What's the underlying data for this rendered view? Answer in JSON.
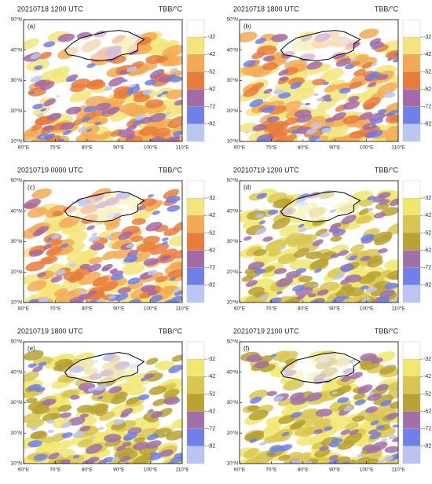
{
  "panels": [
    {
      "title": "20210718 1200 UTC",
      "unit": "TBB/°C",
      "label": "(a)",
      "palette": [
        "#ffffff",
        "#f3e57c",
        "#f3aa55",
        "#e87c3c",
        "#a46aa6",
        "#6f80e6",
        "#bcc6f2"
      ]
    },
    {
      "title": "20210718 1800 UTC",
      "unit": "TBB/°C",
      "label": "(b)",
      "palette": [
        "#ffffff",
        "#f3e57c",
        "#f3aa55",
        "#e87c3c",
        "#a46aa6",
        "#6f80e6",
        "#bcc6f2"
      ]
    },
    {
      "title": "20210719 0000 UTC",
      "unit": "TBB/°C",
      "label": "(c)",
      "palette": [
        "#ffffff",
        "#f3e57c",
        "#f3aa55",
        "#e87c3c",
        "#a46aa6",
        "#6f80e6",
        "#bcc6f2"
      ]
    },
    {
      "title": "20210719 1200 UTC",
      "unit": "TBB/°C",
      "label": "(d)",
      "palette": [
        "#ffffff",
        "#f0e86e",
        "#d9c552",
        "#b9a134",
        "#a070a8",
        "#7080e8",
        "#bcc4f2"
      ]
    },
    {
      "title": "20210719 1800 UTC",
      "unit": "TBB/°C",
      "label": "(e)",
      "palette": [
        "#ffffff",
        "#f0e86e",
        "#d9c552",
        "#b9a134",
        "#a070a8",
        "#7080e8",
        "#bcc4f2"
      ]
    },
    {
      "title": "20210719 2100 UTC",
      "unit": "TBB/°C",
      "label": "(f)",
      "palette": [
        "#ffffff",
        "#f0e86e",
        "#d9c552",
        "#b9a134",
        "#a070a8",
        "#7080e8",
        "#bcc4f2"
      ]
    }
  ],
  "lon_labels": [
    "60°E",
    "70°E",
    "80°E",
    "90°E",
    "100°E",
    "110°E"
  ],
  "lat_labels": [
    "10°N",
    "20°N",
    "30°N",
    "40°N",
    "50°N"
  ],
  "colorbar_ticks": [
    -32,
    -42,
    -52,
    -62,
    -72,
    -82
  ]
}
